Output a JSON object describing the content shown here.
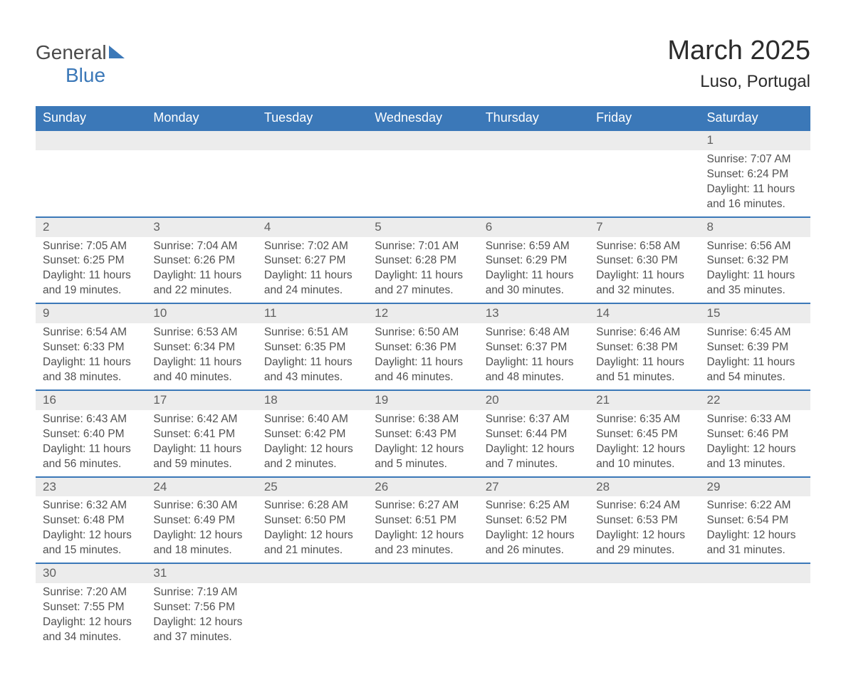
{
  "logo": {
    "general": "General",
    "blue": "Blue"
  },
  "title": "March 2025",
  "location": "Luso, Portugal",
  "colors": {
    "header_bg": "#3b78b8",
    "header_text": "#ffffff",
    "daynum_bg": "#ececec",
    "border_top": "#3b78b8",
    "body_text": "#515151",
    "title_text": "#2b2b2b"
  },
  "typography": {
    "title_fontsize": 38,
    "location_fontsize": 24,
    "weekday_fontsize": 18,
    "cell_fontsize": 15.5
  },
  "weekdays": [
    "Sunday",
    "Monday",
    "Tuesday",
    "Wednesday",
    "Thursday",
    "Friday",
    "Saturday"
  ],
  "weeks": [
    [
      null,
      null,
      null,
      null,
      null,
      null,
      {
        "n": "1",
        "sr": "Sunrise: 7:07 AM",
        "ss": "Sunset: 6:24 PM",
        "d1": "Daylight: 11 hours",
        "d2": "and 16 minutes."
      }
    ],
    [
      {
        "n": "2",
        "sr": "Sunrise: 7:05 AM",
        "ss": "Sunset: 6:25 PM",
        "d1": "Daylight: 11 hours",
        "d2": "and 19 minutes."
      },
      {
        "n": "3",
        "sr": "Sunrise: 7:04 AM",
        "ss": "Sunset: 6:26 PM",
        "d1": "Daylight: 11 hours",
        "d2": "and 22 minutes."
      },
      {
        "n": "4",
        "sr": "Sunrise: 7:02 AM",
        "ss": "Sunset: 6:27 PM",
        "d1": "Daylight: 11 hours",
        "d2": "and 24 minutes."
      },
      {
        "n": "5",
        "sr": "Sunrise: 7:01 AM",
        "ss": "Sunset: 6:28 PM",
        "d1": "Daylight: 11 hours",
        "d2": "and 27 minutes."
      },
      {
        "n": "6",
        "sr": "Sunrise: 6:59 AM",
        "ss": "Sunset: 6:29 PM",
        "d1": "Daylight: 11 hours",
        "d2": "and 30 minutes."
      },
      {
        "n": "7",
        "sr": "Sunrise: 6:58 AM",
        "ss": "Sunset: 6:30 PM",
        "d1": "Daylight: 11 hours",
        "d2": "and 32 minutes."
      },
      {
        "n": "8",
        "sr": "Sunrise: 6:56 AM",
        "ss": "Sunset: 6:32 PM",
        "d1": "Daylight: 11 hours",
        "d2": "and 35 minutes."
      }
    ],
    [
      {
        "n": "9",
        "sr": "Sunrise: 6:54 AM",
        "ss": "Sunset: 6:33 PM",
        "d1": "Daylight: 11 hours",
        "d2": "and 38 minutes."
      },
      {
        "n": "10",
        "sr": "Sunrise: 6:53 AM",
        "ss": "Sunset: 6:34 PM",
        "d1": "Daylight: 11 hours",
        "d2": "and 40 minutes."
      },
      {
        "n": "11",
        "sr": "Sunrise: 6:51 AM",
        "ss": "Sunset: 6:35 PM",
        "d1": "Daylight: 11 hours",
        "d2": "and 43 minutes."
      },
      {
        "n": "12",
        "sr": "Sunrise: 6:50 AM",
        "ss": "Sunset: 6:36 PM",
        "d1": "Daylight: 11 hours",
        "d2": "and 46 minutes."
      },
      {
        "n": "13",
        "sr": "Sunrise: 6:48 AM",
        "ss": "Sunset: 6:37 PM",
        "d1": "Daylight: 11 hours",
        "d2": "and 48 minutes."
      },
      {
        "n": "14",
        "sr": "Sunrise: 6:46 AM",
        "ss": "Sunset: 6:38 PM",
        "d1": "Daylight: 11 hours",
        "d2": "and 51 minutes."
      },
      {
        "n": "15",
        "sr": "Sunrise: 6:45 AM",
        "ss": "Sunset: 6:39 PM",
        "d1": "Daylight: 11 hours",
        "d2": "and 54 minutes."
      }
    ],
    [
      {
        "n": "16",
        "sr": "Sunrise: 6:43 AM",
        "ss": "Sunset: 6:40 PM",
        "d1": "Daylight: 11 hours",
        "d2": "and 56 minutes."
      },
      {
        "n": "17",
        "sr": "Sunrise: 6:42 AM",
        "ss": "Sunset: 6:41 PM",
        "d1": "Daylight: 11 hours",
        "d2": "and 59 minutes."
      },
      {
        "n": "18",
        "sr": "Sunrise: 6:40 AM",
        "ss": "Sunset: 6:42 PM",
        "d1": "Daylight: 12 hours",
        "d2": "and 2 minutes."
      },
      {
        "n": "19",
        "sr": "Sunrise: 6:38 AM",
        "ss": "Sunset: 6:43 PM",
        "d1": "Daylight: 12 hours",
        "d2": "and 5 minutes."
      },
      {
        "n": "20",
        "sr": "Sunrise: 6:37 AM",
        "ss": "Sunset: 6:44 PM",
        "d1": "Daylight: 12 hours",
        "d2": "and 7 minutes."
      },
      {
        "n": "21",
        "sr": "Sunrise: 6:35 AM",
        "ss": "Sunset: 6:45 PM",
        "d1": "Daylight: 12 hours",
        "d2": "and 10 minutes."
      },
      {
        "n": "22",
        "sr": "Sunrise: 6:33 AM",
        "ss": "Sunset: 6:46 PM",
        "d1": "Daylight: 12 hours",
        "d2": "and 13 minutes."
      }
    ],
    [
      {
        "n": "23",
        "sr": "Sunrise: 6:32 AM",
        "ss": "Sunset: 6:48 PM",
        "d1": "Daylight: 12 hours",
        "d2": "and 15 minutes."
      },
      {
        "n": "24",
        "sr": "Sunrise: 6:30 AM",
        "ss": "Sunset: 6:49 PM",
        "d1": "Daylight: 12 hours",
        "d2": "and 18 minutes."
      },
      {
        "n": "25",
        "sr": "Sunrise: 6:28 AM",
        "ss": "Sunset: 6:50 PM",
        "d1": "Daylight: 12 hours",
        "d2": "and 21 minutes."
      },
      {
        "n": "26",
        "sr": "Sunrise: 6:27 AM",
        "ss": "Sunset: 6:51 PM",
        "d1": "Daylight: 12 hours",
        "d2": "and 23 minutes."
      },
      {
        "n": "27",
        "sr": "Sunrise: 6:25 AM",
        "ss": "Sunset: 6:52 PM",
        "d1": "Daylight: 12 hours",
        "d2": "and 26 minutes."
      },
      {
        "n": "28",
        "sr": "Sunrise: 6:24 AM",
        "ss": "Sunset: 6:53 PM",
        "d1": "Daylight: 12 hours",
        "d2": "and 29 minutes."
      },
      {
        "n": "29",
        "sr": "Sunrise: 6:22 AM",
        "ss": "Sunset: 6:54 PM",
        "d1": "Daylight: 12 hours",
        "d2": "and 31 minutes."
      }
    ],
    [
      {
        "n": "30",
        "sr": "Sunrise: 7:20 AM",
        "ss": "Sunset: 7:55 PM",
        "d1": "Daylight: 12 hours",
        "d2": "and 34 minutes."
      },
      {
        "n": "31",
        "sr": "Sunrise: 7:19 AM",
        "ss": "Sunset: 7:56 PM",
        "d1": "Daylight: 12 hours",
        "d2": "and 37 minutes."
      },
      null,
      null,
      null,
      null,
      null
    ]
  ]
}
